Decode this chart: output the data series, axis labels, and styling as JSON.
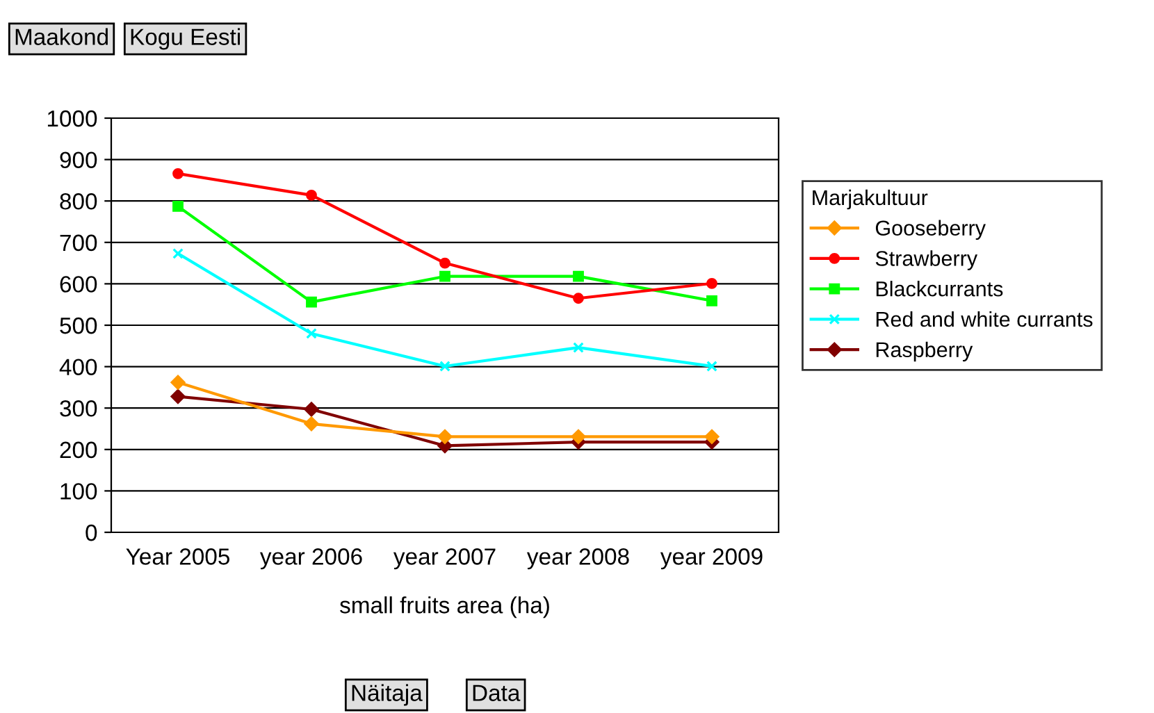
{
  "chart_data": {
    "type": "line",
    "xlabel": "small fruits area (ha)",
    "legend_title": "Marjakultuur",
    "categories": [
      "Year 2005",
      "year 2006",
      "year 2007",
      "year 2008",
      "year 2009"
    ],
    "series": [
      {
        "name": "Gooseberry",
        "color": "#ff9900",
        "marker": "diamond",
        "values": [
          362,
          262,
          231,
          231,
          231
        ]
      },
      {
        "name": "Strawberry",
        "color": "#ff0000",
        "marker": "circle",
        "values": [
          866,
          814,
          650,
          565,
          601
        ]
      },
      {
        "name": "Blackcurrants",
        "color": "#00ff00",
        "marker": "square",
        "values": [
          787,
          556,
          618,
          618,
          559
        ]
      },
      {
        "name": "Red and white currants",
        "color": "#00ffff",
        "marker": "cross",
        "values": [
          673,
          480,
          401,
          446,
          401
        ]
      },
      {
        "name": "Raspberry",
        "color": "#800000",
        "marker": "diamond",
        "values": [
          328,
          297,
          209,
          218,
          218
        ]
      }
    ],
    "ylim": [
      0,
      1000
    ],
    "yticks": [
      0,
      100,
      200,
      300,
      400,
      500,
      600,
      700,
      800,
      900,
      1000
    ],
    "grid": "y",
    "legend": "right",
    "line_style": "solid",
    "annotations": [
      "Maakond",
      "Kogu Eesti",
      "Näitaja",
      "Data"
    ]
  }
}
